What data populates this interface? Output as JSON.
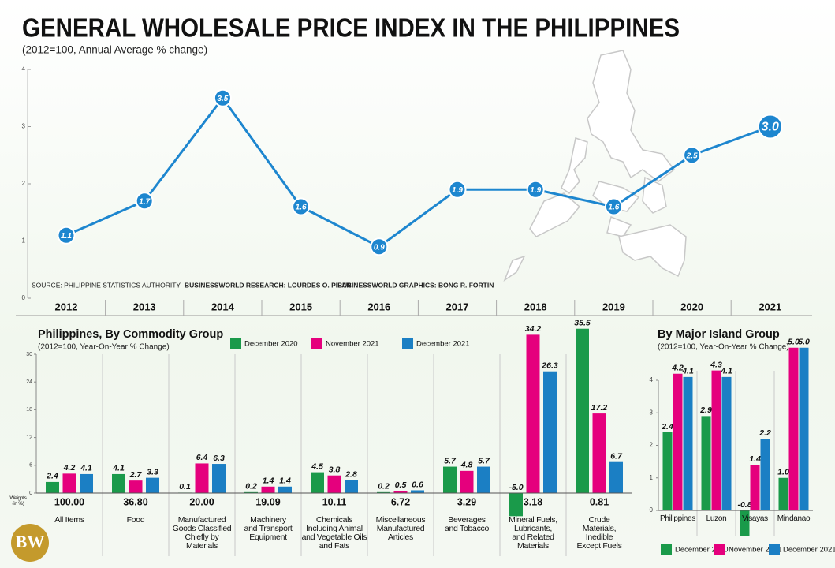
{
  "logo": "BW",
  "chart_data": [
    {
      "type": "line",
      "title": "GENERAL WHOLESALE PRICE INDEX IN THE PHILIPPINES",
      "subtitle": "(2012=100, Annual Average % change)",
      "categories": [
        "2012",
        "2013",
        "2014",
        "2015",
        "2016",
        "2017",
        "2018",
        "2019",
        "2020",
        "2021"
      ],
      "values": [
        1.1,
        1.7,
        3.5,
        1.6,
        0.9,
        1.9,
        1.9,
        1.6,
        2.5,
        3.0
      ],
      "value_labels": [
        "1.1",
        "1.7",
        "3.5",
        "1.6",
        "0.9",
        "1.9",
        "1.9",
        "1.6",
        "2.5",
        "3.0"
      ],
      "color": "#1d86cf",
      "ylim": [
        0,
        4
      ],
      "yticks": [
        0,
        1,
        2,
        3,
        4
      ],
      "notes": [
        "SOURCE: PHILIPPINE STATISTICS AUTHORITY",
        "BUSINESSWORLD RESEARCH: LOURDES O. PILAR",
        "BUSINESSWORLD GRAPHICS: BONG R. FORTIN"
      ]
    },
    {
      "type": "bar",
      "title": "Philippines, By Commodity Group",
      "subtitle": "(2012=100, Year-On-Year % Change)",
      "categories": [
        "All Items",
        "Food",
        "Manufactured\nGoods Classified\nChiefly by\nMaterials",
        "Machinery\nand Transport\nEquipment",
        "Chemicals\nIncluding Animal\nand Vegetable Oils\nand Fats",
        "Miscellaneous\nManufactured\nArticles",
        "Beverages\nand Tobacco",
        "Mineral Fuels,\nLubricants,\nand Related\nMaterials",
        "Crude\nMaterials,\nInedible\nExcept Fuels"
      ],
      "weights_label": "Weights\n(in %)",
      "weights": [
        "100.00",
        "36.80",
        "20.00",
        "19.09",
        "10.11",
        "6.72",
        "3.29",
        "3.18",
        "0.81"
      ],
      "series": [
        {
          "name": "December 2020",
          "color": "#1a9a4a",
          "values": [
            2.4,
            4.1,
            0.1,
            0.2,
            4.5,
            0.2,
            5.7,
            -5.0,
            35.5
          ],
          "value_labels": [
            "2.4",
            "4.1",
            "0.1",
            "0.2",
            "4.5",
            "0.2",
            "5.7",
            "-5.0",
            "35.5"
          ]
        },
        {
          "name": "November 2021",
          "color": "#e5007d",
          "values": [
            4.2,
            2.7,
            6.4,
            1.4,
            3.8,
            0.5,
            4.8,
            34.2,
            17.2
          ],
          "value_labels": [
            "4.2",
            "2.7",
            "6.4",
            "1.4",
            "3.8",
            "0.5",
            "4.8",
            "34.2",
            "17.2"
          ]
        },
        {
          "name": "December 2021",
          "color": "#1b7fc4",
          "values": [
            4.1,
            3.3,
            6.3,
            1.4,
            2.8,
            0.6,
            5.7,
            26.3,
            6.7
          ],
          "value_labels": [
            "4.1",
            "3.3",
            "6.3",
            "1.4",
            "2.8",
            "0.6",
            "5.7",
            "26.3",
            "6.7"
          ]
        }
      ],
      "ylim": [
        0,
        30
      ],
      "yticks": [
        0,
        6,
        12,
        18,
        24,
        30
      ],
      "legend": "top"
    },
    {
      "type": "bar",
      "title": "By Major Island Group",
      "subtitle": "(2012=100, Year-On-Year % Change)",
      "categories": [
        "Philippines",
        "Luzon",
        "Visayas",
        "Mindanao"
      ],
      "series": [
        {
          "name": "December 2020",
          "color": "#1a9a4a",
          "values": [
            2.4,
            2.9,
            -0.8,
            1.0
          ],
          "value_labels": [
            "2.4",
            "2.9",
            "-0.8",
            "1.0"
          ]
        },
        {
          "name": "November 2021",
          "color": "#e5007d",
          "values": [
            4.2,
            4.3,
            1.4,
            5.0
          ],
          "value_labels": [
            "4.2",
            "4.3",
            "1.4",
            "5.0"
          ]
        },
        {
          "name": "December 2021",
          "color": "#1b7fc4",
          "values": [
            4.1,
            4.1,
            2.2,
            5.0
          ],
          "value_labels": [
            "4.1",
            "4.1",
            "2.2",
            "5.0"
          ]
        }
      ],
      "ylim": [
        0,
        4
      ],
      "yticks": [
        0,
        1,
        2,
        3,
        4
      ],
      "legend": "bottom"
    }
  ]
}
